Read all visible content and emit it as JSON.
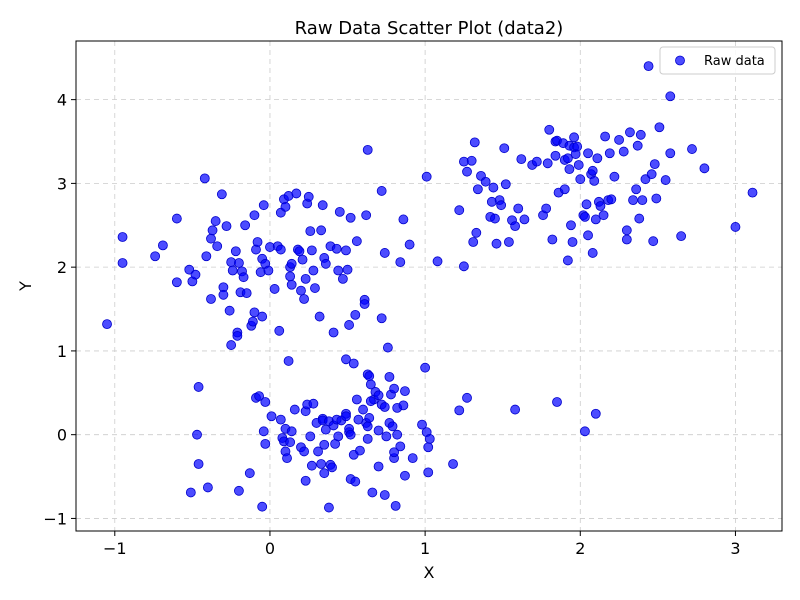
{
  "chart_data": {
    "type": "scatter",
    "title": "Raw Data Scatter Plot (data2)",
    "xlabel": "X",
    "ylabel": "Y",
    "xlim": [
      -1.25,
      3.3
    ],
    "ylim": [
      -1.15,
      4.7
    ],
    "xticks": [
      -1,
      0,
      1,
      2,
      3
    ],
    "xtick_labels": [
      "−1",
      "0",
      "1",
      "2",
      "3"
    ],
    "yticks": [
      -1,
      0,
      1,
      2,
      3,
      4
    ],
    "ytick_labels": [
      "−1",
      "0",
      "1",
      "2",
      "3",
      "4"
    ],
    "grid": true,
    "legend_position": "top-right",
    "colors": {
      "marker": "#0000ff",
      "marker_edge": "#0000cc",
      "grid": "#cccccc",
      "axes": "#000000"
    },
    "series": [
      {
        "name": "Raw data",
        "points": [
          [
            -1.05,
            1.32
          ],
          [
            -0.95,
            2.36
          ],
          [
            -0.95,
            2.05
          ],
          [
            -0.74,
            2.13
          ],
          [
            -0.69,
            2.26
          ],
          [
            -0.6,
            2.58
          ],
          [
            -0.6,
            1.82
          ],
          [
            -0.52,
            1.97
          ],
          [
            -0.5,
            1.83
          ],
          [
            -0.48,
            1.91
          ],
          [
            -0.42,
            3.06
          ],
          [
            -0.41,
            2.13
          ],
          [
            -0.38,
            2.34
          ],
          [
            -0.37,
            2.44
          ],
          [
            -0.38,
            1.62
          ],
          [
            -0.35,
            2.55
          ],
          [
            -0.34,
            2.25
          ],
          [
            -0.31,
            2.87
          ],
          [
            -0.3,
            1.76
          ],
          [
            -0.3,
            1.67
          ],
          [
            -0.28,
            2.49
          ],
          [
            -0.26,
            1.48
          ],
          [
            -0.25,
            2.06
          ],
          [
            -0.25,
            1.07
          ],
          [
            -0.24,
            1.96
          ],
          [
            -0.22,
            2.19
          ],
          [
            -0.21,
            1.22
          ],
          [
            -0.21,
            1.18
          ],
          [
            -0.2,
            2.05
          ],
          [
            -0.19,
            1.7
          ],
          [
            -0.18,
            1.95
          ],
          [
            -0.17,
            1.88
          ],
          [
            -0.16,
            2.5
          ],
          [
            -0.15,
            1.69
          ],
          [
            -0.12,
            1.3
          ],
          [
            -0.11,
            1.35
          ],
          [
            -0.1,
            2.62
          ],
          [
            -0.1,
            1.46
          ],
          [
            -0.09,
            2.21
          ],
          [
            -0.08,
            2.3
          ],
          [
            -0.06,
            1.94
          ],
          [
            -0.05,
            2.1
          ],
          [
            -0.05,
            1.41
          ],
          [
            -0.04,
            2.74
          ],
          [
            -0.03,
            2.04
          ],
          [
            -0.01,
            1.96
          ],
          [
            0.0,
            2.24
          ],
          [
            0.03,
            1.74
          ],
          [
            0.05,
            2.25
          ],
          [
            0.06,
            1.24
          ],
          [
            0.07,
            2.21
          ],
          [
            0.07,
            2.65
          ],
          [
            0.09,
            2.81
          ],
          [
            0.1,
            2.72
          ],
          [
            0.12,
            2.85
          ],
          [
            0.13,
            2.0
          ],
          [
            0.13,
            1.89
          ],
          [
            0.14,
            1.79
          ],
          [
            0.14,
            2.04
          ],
          [
            0.17,
            2.88
          ],
          [
            0.18,
            2.21
          ],
          [
            0.19,
            2.19
          ],
          [
            0.2,
            1.72
          ],
          [
            0.21,
            2.09
          ],
          [
            0.22,
            1.62
          ],
          [
            0.23,
            1.86
          ],
          [
            0.24,
            2.76
          ],
          [
            0.25,
            2.84
          ],
          [
            0.26,
            2.43
          ],
          [
            0.27,
            2.2
          ],
          [
            0.28,
            1.96
          ],
          [
            0.29,
            1.75
          ],
          [
            0.32,
            1.41
          ],
          [
            0.33,
            2.44
          ],
          [
            0.34,
            2.74
          ],
          [
            0.35,
            2.11
          ],
          [
            0.36,
            2.04
          ],
          [
            0.39,
            2.25
          ],
          [
            0.41,
            1.22
          ],
          [
            0.43,
            2.22
          ],
          [
            0.44,
            1.96
          ],
          [
            0.45,
            2.66
          ],
          [
            0.47,
            1.86
          ],
          [
            0.49,
            2.2
          ],
          [
            0.5,
            1.97
          ],
          [
            0.51,
            1.31
          ],
          [
            0.52,
            2.59
          ],
          [
            0.55,
            1.43
          ],
          [
            0.56,
            2.31
          ],
          [
            0.61,
            1.61
          ],
          [
            0.61,
            1.56
          ],
          [
            0.62,
            2.62
          ],
          [
            0.63,
            3.4
          ],
          [
            0.72,
            2.91
          ],
          [
            0.72,
            1.39
          ],
          [
            0.74,
            2.17
          ],
          [
            0.76,
            1.04
          ],
          [
            0.84,
            2.06
          ],
          [
            0.86,
            2.57
          ],
          [
            0.9,
            2.27
          ],
          [
            1.01,
            3.08
          ],
          [
            1.08,
            2.07
          ],
          [
            0.12,
            0.88
          ],
          [
            0.49,
            0.9
          ],
          [
            0.54,
            0.85
          ],
          [
            0.63,
            0.72
          ],
          [
            0.64,
            0.7
          ],
          [
            0.65,
            0.6
          ],
          [
            0.67,
            0.42
          ],
          [
            0.68,
            0.51
          ],
          [
            0.7,
            0.47
          ],
          [
            0.72,
            0.36
          ],
          [
            0.74,
            0.33
          ],
          [
            0.77,
            0.69
          ],
          [
            0.78,
            0.48
          ],
          [
            0.8,
            0.55
          ],
          [
            0.82,
            0.32
          ],
          [
            0.86,
            0.35
          ],
          [
            0.87,
            0.52
          ],
          [
            1.0,
            0.8
          ],
          [
            -0.46,
            0.57
          ],
          [
            -0.47,
            0.0
          ],
          [
            -0.46,
            -0.35
          ],
          [
            -0.4,
            -0.63
          ],
          [
            -0.51,
            -0.69
          ],
          [
            -0.2,
            -0.67
          ],
          [
            -0.13,
            -0.46
          ],
          [
            -0.09,
            0.44
          ],
          [
            -0.07,
            0.46
          ],
          [
            -0.03,
            0.39
          ],
          [
            -0.04,
            0.04
          ],
          [
            -0.03,
            -0.11
          ],
          [
            -0.05,
            -0.86
          ],
          [
            0.01,
            0.22
          ],
          [
            0.07,
            0.18
          ],
          [
            0.08,
            -0.04
          ],
          [
            0.09,
            -0.08
          ],
          [
            0.1,
            -0.2
          ],
          [
            0.1,
            0.07
          ],
          [
            0.11,
            -0.28
          ],
          [
            0.13,
            -0.09
          ],
          [
            0.14,
            0.04
          ],
          [
            0.16,
            0.3
          ],
          [
            0.2,
            -0.15
          ],
          [
            0.22,
            -0.2
          ],
          [
            0.23,
            0.28
          ],
          [
            0.23,
            -0.55
          ],
          [
            0.24,
            0.36
          ],
          [
            0.26,
            -0.02
          ],
          [
            0.27,
            -0.37
          ],
          [
            0.28,
            0.37
          ],
          [
            0.3,
            0.14
          ],
          [
            0.31,
            -0.2
          ],
          [
            0.33,
            -0.35
          ],
          [
            0.34,
            0.19
          ],
          [
            0.34,
            0.17
          ],
          [
            0.35,
            -0.12
          ],
          [
            0.35,
            -0.46
          ],
          [
            0.36,
            0.06
          ],
          [
            0.38,
            0.16
          ],
          [
            0.39,
            -0.36
          ],
          [
            0.4,
            -0.39
          ],
          [
            0.41,
            0.11
          ],
          [
            0.42,
            -0.11
          ],
          [
            0.43,
            0.18
          ],
          [
            0.44,
            -0.02
          ],
          [
            0.46,
            0.17
          ],
          [
            0.49,
            0.25
          ],
          [
            0.49,
            0.22
          ],
          [
            0.51,
            0.03
          ],
          [
            0.51,
            0.07
          ],
          [
            0.52,
            -0.53
          ],
          [
            0.52,
            0.0
          ],
          [
            0.54,
            -0.24
          ],
          [
            0.55,
            -0.56
          ],
          [
            0.56,
            0.42
          ],
          [
            0.57,
            0.18
          ],
          [
            0.58,
            -0.19
          ],
          [
            0.6,
            0.3
          ],
          [
            0.62,
            0.14
          ],
          [
            0.63,
            0.1
          ],
          [
            0.63,
            -0.05
          ],
          [
            0.64,
            0.2
          ],
          [
            0.65,
            0.4
          ],
          [
            0.66,
            -0.69
          ],
          [
            0.7,
            -0.38
          ],
          [
            0.7,
            0.05
          ],
          [
            0.74,
            -0.72
          ],
          [
            0.75,
            -0.02
          ],
          [
            0.77,
            0.14
          ],
          [
            0.79,
            0.1
          ],
          [
            0.8,
            -0.28
          ],
          [
            0.81,
            -0.85
          ],
          [
            0.82,
            0.0
          ],
          [
            0.8,
            -0.21
          ],
          [
            0.84,
            -0.14
          ],
          [
            0.87,
            -0.49
          ],
          [
            0.92,
            -0.28
          ],
          [
            0.98,
            0.12
          ],
          [
            1.01,
            0.03
          ],
          [
            1.02,
            -0.15
          ],
          [
            1.02,
            -0.45
          ],
          [
            1.03,
            -0.05
          ],
          [
            1.18,
            -0.35
          ],
          [
            1.22,
            0.29
          ],
          [
            1.27,
            0.44
          ],
          [
            0.38,
            -0.87
          ],
          [
            1.58,
            0.3
          ],
          [
            1.85,
            0.39
          ],
          [
            2.03,
            0.04
          ],
          [
            2.1,
            0.25
          ],
          [
            1.22,
            2.68
          ],
          [
            1.25,
            3.26
          ],
          [
            1.25,
            2.01
          ],
          [
            1.27,
            3.14
          ],
          [
            1.3,
            3.27
          ],
          [
            1.31,
            2.3
          ],
          [
            1.32,
            3.49
          ],
          [
            1.33,
            2.41
          ],
          [
            1.34,
            2.93
          ],
          [
            1.36,
            3.09
          ],
          [
            1.39,
            3.02
          ],
          [
            1.42,
            2.6
          ],
          [
            1.43,
            2.78
          ],
          [
            1.44,
            2.95
          ],
          [
            1.45,
            2.58
          ],
          [
            1.46,
            2.28
          ],
          [
            1.48,
            2.8
          ],
          [
            1.49,
            2.74
          ],
          [
            1.51,
            3.42
          ],
          [
            1.52,
            2.99
          ],
          [
            1.54,
            2.3
          ],
          [
            1.56,
            2.56
          ],
          [
            1.58,
            2.49
          ],
          [
            1.6,
            2.7
          ],
          [
            1.62,
            3.29
          ],
          [
            1.64,
            2.57
          ],
          [
            1.69,
            3.22
          ],
          [
            1.72,
            3.26
          ],
          [
            1.76,
            2.62
          ],
          [
            1.78,
            2.7
          ],
          [
            1.79,
            3.24
          ],
          [
            1.8,
            3.64
          ],
          [
            1.82,
            2.33
          ],
          [
            1.84,
            3.5
          ],
          [
            1.85,
            3.51
          ],
          [
            1.86,
            2.89
          ],
          [
            1.89,
            3.48
          ],
          [
            1.9,
            2.93
          ],
          [
            1.9,
            3.28
          ],
          [
            1.92,
            3.3
          ],
          [
            1.93,
            3.45
          ],
          [
            1.93,
            3.17
          ],
          [
            1.94,
            2.5
          ],
          [
            1.95,
            2.3
          ],
          [
            1.96,
            3.43
          ],
          [
            1.97,
            3.35
          ],
          [
            1.98,
            3.44
          ],
          [
            1.99,
            3.22
          ],
          [
            2.0,
            3.05
          ],
          [
            2.02,
            2.62
          ],
          [
            2.03,
            2.6
          ],
          [
            2.04,
            2.75
          ],
          [
            2.05,
            3.36
          ],
          [
            2.07,
            3.11
          ],
          [
            2.08,
            2.17
          ],
          [
            2.08,
            3.15
          ],
          [
            2.09,
            3.03
          ],
          [
            2.1,
            2.57
          ],
          [
            2.11,
            3.3
          ],
          [
            2.12,
            2.78
          ],
          [
            2.13,
            2.73
          ],
          [
            2.15,
            2.62
          ],
          [
            2.16,
            3.56
          ],
          [
            2.18,
            2.8
          ],
          [
            2.19,
            3.36
          ],
          [
            2.2,
            2.81
          ],
          [
            2.22,
            3.08
          ],
          [
            2.25,
            3.52
          ],
          [
            2.28,
            3.38
          ],
          [
            2.3,
            2.33
          ],
          [
            2.3,
            2.44
          ],
          [
            2.32,
            3.61
          ],
          [
            2.34,
            2.8
          ],
          [
            2.36,
            2.93
          ],
          [
            2.37,
            3.45
          ],
          [
            2.38,
            2.58
          ],
          [
            2.39,
            3.58
          ],
          [
            2.4,
            2.8
          ],
          [
            2.42,
            3.05
          ],
          [
            2.44,
            4.4
          ],
          [
            2.46,
            3.11
          ],
          [
            2.47,
            2.31
          ],
          [
            2.48,
            3.23
          ],
          [
            2.49,
            2.82
          ],
          [
            2.51,
            3.67
          ],
          [
            2.55,
            3.04
          ],
          [
            2.58,
            4.04
          ],
          [
            2.58,
            3.36
          ],
          [
            2.65,
            2.37
          ],
          [
            2.72,
            3.41
          ],
          [
            2.8,
            3.18
          ],
          [
            3.0,
            2.48
          ],
          [
            3.11,
            2.89
          ],
          [
            1.92,
            2.08
          ],
          [
            2.05,
            2.38
          ],
          [
            1.84,
            3.33
          ],
          [
            1.96,
            3.55
          ]
        ]
      }
    ]
  }
}
